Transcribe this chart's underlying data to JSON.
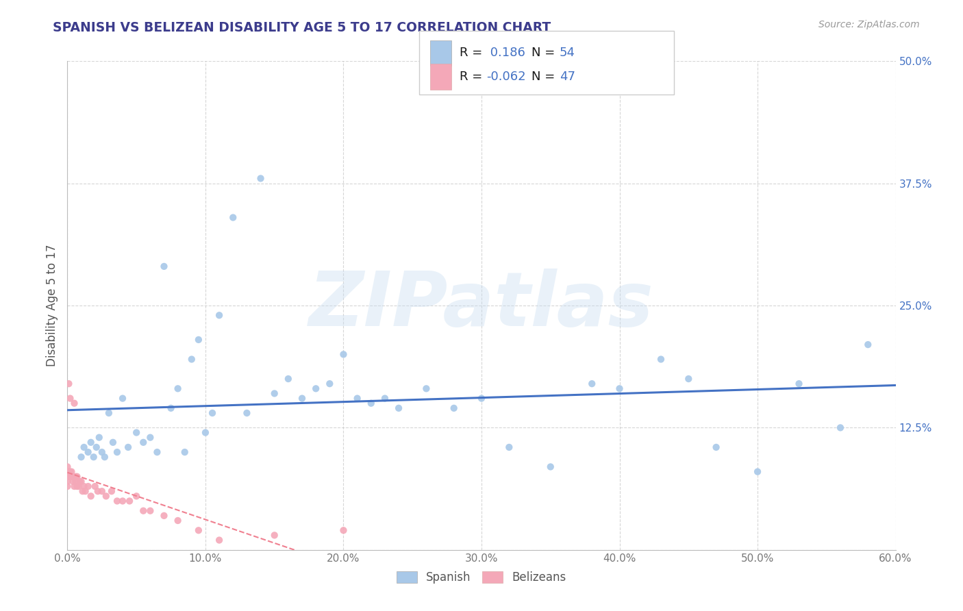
{
  "title": "SPANISH VS BELIZEAN DISABILITY AGE 5 TO 17 CORRELATION CHART",
  "source_text": "Source: ZipAtlas.com",
  "ylabel": "Disability Age 5 to 17",
  "xlim": [
    0.0,
    0.6
  ],
  "ylim": [
    0.0,
    0.5
  ],
  "xticks": [
    0.0,
    0.1,
    0.2,
    0.3,
    0.4,
    0.5,
    0.6
  ],
  "yticks": [
    0.0,
    0.125,
    0.25,
    0.375,
    0.5
  ],
  "xticklabels": [
    "0.0%",
    "10.0%",
    "20.0%",
    "30.0%",
    "40.0%",
    "50.0%",
    "60.0%"
  ],
  "yticklabels": [
    "",
    "12.5%",
    "25.0%",
    "37.5%",
    "50.0%"
  ],
  "spanish_color": "#a8c8e8",
  "belizean_color": "#f4a8b8",
  "trend_spanish_color": "#4472c4",
  "trend_belizean_color": "#f08090",
  "R_spanish": 0.186,
  "N_spanish": 54,
  "R_belizean": -0.062,
  "N_belizean": 47,
  "watermark": "ZIPatlas",
  "title_color": "#3c3c8c",
  "axis_label_color": "#555555",
  "tick_label_color": "#777777",
  "right_tick_color": "#4472c4",
  "legend_text_color": "#1a1a1a",
  "legend_value_color": "#4472c4",
  "background_color": "#ffffff",
  "grid_color": "#cccccc",
  "spanish_x": [
    0.01,
    0.012,
    0.015,
    0.017,
    0.019,
    0.021,
    0.023,
    0.025,
    0.027,
    0.03,
    0.033,
    0.036,
    0.04,
    0.044,
    0.05,
    0.055,
    0.06,
    0.065,
    0.07,
    0.075,
    0.08,
    0.085,
    0.09,
    0.095,
    0.1,
    0.105,
    0.11,
    0.12,
    0.13,
    0.14,
    0.15,
    0.16,
    0.17,
    0.18,
    0.19,
    0.2,
    0.21,
    0.22,
    0.23,
    0.24,
    0.26,
    0.28,
    0.3,
    0.32,
    0.35,
    0.38,
    0.4,
    0.43,
    0.45,
    0.47,
    0.5,
    0.53,
    0.56,
    0.58
  ],
  "spanish_y": [
    0.095,
    0.105,
    0.1,
    0.11,
    0.095,
    0.105,
    0.115,
    0.1,
    0.095,
    0.14,
    0.11,
    0.1,
    0.155,
    0.105,
    0.12,
    0.11,
    0.115,
    0.1,
    0.29,
    0.145,
    0.165,
    0.1,
    0.195,
    0.215,
    0.12,
    0.14,
    0.24,
    0.34,
    0.14,
    0.38,
    0.16,
    0.175,
    0.155,
    0.165,
    0.17,
    0.2,
    0.155,
    0.15,
    0.155,
    0.145,
    0.165,
    0.145,
    0.155,
    0.105,
    0.085,
    0.17,
    0.165,
    0.195,
    0.175,
    0.105,
    0.08,
    0.17,
    0.125,
    0.21
  ],
  "belizean_x": [
    0.0,
    0.0,
    0.0,
    0.0,
    0.0,
    0.001,
    0.001,
    0.001,
    0.001,
    0.002,
    0.002,
    0.002,
    0.003,
    0.003,
    0.004,
    0.004,
    0.005,
    0.005,
    0.006,
    0.006,
    0.007,
    0.007,
    0.008,
    0.009,
    0.01,
    0.011,
    0.012,
    0.013,
    0.015,
    0.017,
    0.02,
    0.022,
    0.025,
    0.028,
    0.032,
    0.036,
    0.04,
    0.045,
    0.05,
    0.055,
    0.06,
    0.07,
    0.08,
    0.095,
    0.11,
    0.15,
    0.2
  ],
  "belizean_y": [
    0.075,
    0.08,
    0.085,
    0.065,
    0.07,
    0.075,
    0.08,
    0.075,
    0.17,
    0.08,
    0.075,
    0.155,
    0.08,
    0.075,
    0.075,
    0.07,
    0.065,
    0.15,
    0.075,
    0.07,
    0.075,
    0.065,
    0.065,
    0.07,
    0.07,
    0.06,
    0.065,
    0.06,
    0.065,
    0.055,
    0.065,
    0.06,
    0.06,
    0.055,
    0.06,
    0.05,
    0.05,
    0.05,
    0.055,
    0.04,
    0.04,
    0.035,
    0.03,
    0.02,
    0.01,
    0.015,
    0.02
  ]
}
